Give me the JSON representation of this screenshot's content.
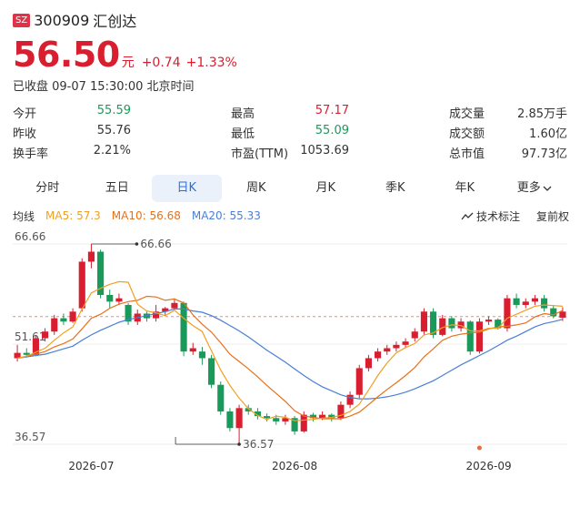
{
  "header": {
    "badge": "SZ",
    "code": "300909",
    "name": "汇创达"
  },
  "quote": {
    "price": "56.50",
    "unit": "元",
    "change": "+0.74",
    "change_pct": "+1.33%"
  },
  "status": "已收盘 09-07 15:30:00 北京时间",
  "stats": [
    [
      {
        "label": "今开",
        "value": "55.59",
        "color": "green"
      },
      {
        "label": "最高",
        "value": "57.17",
        "color": "red"
      },
      {
        "label": "成交量",
        "value": "2.85万手",
        "color": "normal"
      }
    ],
    [
      {
        "label": "昨收",
        "value": "55.76",
        "color": "normal"
      },
      {
        "label": "最低",
        "value": "55.09",
        "color": "green"
      },
      {
        "label": "成交额",
        "value": "1.60亿",
        "color": "normal"
      }
    ],
    [
      {
        "label": "换手率",
        "value": "2.21%",
        "color": "normal"
      },
      {
        "label": "市盈(TTM)",
        "value": "1053.69",
        "color": "normal"
      },
      {
        "label": "总市值",
        "value": "97.73亿",
        "color": "normal"
      }
    ]
  ],
  "tabs": [
    "分时",
    "五日",
    "日K",
    "周K",
    "月K",
    "季K",
    "年K",
    "更多"
  ],
  "active_tab": 2,
  "ma_bar": {
    "label": "均线",
    "ma5": "MA5: 57.3",
    "ma10": "MA10: 56.68",
    "ma20": "MA20: 55.33",
    "tech_label": "技术标注",
    "adj_label": "复前权"
  },
  "colors": {
    "up": "#d81e2f",
    "down": "#1a9a5a",
    "ma5": "#f0a020",
    "ma10": "#e8701a",
    "ma20": "#4a7fd6",
    "accent": "#2b6fd6"
  },
  "chart_data": {
    "type": "candlestick",
    "y_ticks": [
      "66.66",
      "51.61",
      "36.57"
    ],
    "y_tick_values": [
      66.66,
      51.61,
      36.57
    ],
    "x_labels": [
      "2026-07",
      "2026-08",
      "2026-09"
    ],
    "x_label_index": [
      8,
      30,
      51
    ],
    "high_marker": {
      "label": "66.66",
      "index": 8,
      "value": 66.66
    },
    "low_marker": {
      "label": "36.57",
      "index": 24,
      "value": 36.57
    },
    "prev_close": 55.76,
    "candles": [
      [
        49.5,
        50.3,
        51.5,
        49.0
      ],
      [
        50.3,
        50.0,
        51.0,
        49.6
      ],
      [
        50.0,
        52.5,
        53.0,
        49.8
      ],
      [
        52.5,
        53.5,
        54.0,
        52.0
      ],
      [
        53.5,
        55.5,
        56.0,
        53.0
      ],
      [
        55.5,
        55.0,
        56.2,
        54.5
      ],
      [
        55.0,
        56.5,
        57.0,
        54.8
      ],
      [
        57.0,
        64.0,
        64.5,
        56.5
      ],
      [
        64.0,
        65.5,
        66.66,
        63.0
      ],
      [
        65.5,
        59.0,
        65.8,
        58.5
      ],
      [
        59.0,
        58.0,
        59.8,
        57.0
      ],
      [
        58.0,
        58.5,
        59.2,
        57.5
      ],
      [
        57.5,
        55.0,
        57.8,
        54.5
      ],
      [
        55.0,
        56.2,
        56.8,
        54.5
      ],
      [
        56.2,
        55.5,
        56.5,
        55.0
      ],
      [
        55.5,
        56.5,
        57.5,
        55.0
      ],
      [
        56.5,
        57.0,
        57.2,
        56.0
      ],
      [
        57.0,
        57.8,
        58.5,
        56.8
      ],
      [
        57.8,
        50.5,
        58.0,
        49.8
      ],
      [
        50.5,
        51.0,
        51.8,
        50.0
      ],
      [
        50.5,
        49.5,
        51.2,
        48.5
      ],
      [
        49.5,
        45.5,
        50.0,
        45.0
      ],
      [
        45.5,
        41.5,
        46.0,
        41.0
      ],
      [
        41.5,
        39.0,
        42.0,
        38.5
      ],
      [
        39.0,
        42.0,
        42.5,
        36.57
      ],
      [
        42.0,
        41.5,
        42.5,
        41.0
      ],
      [
        41.5,
        40.8,
        42.0,
        40.3
      ],
      [
        40.8,
        40.5,
        41.2,
        40.0
      ],
      [
        40.5,
        40.0,
        41.0,
        39.5
      ],
      [
        40.0,
        40.5,
        41.0,
        39.5
      ],
      [
        40.5,
        38.5,
        40.8,
        38.0
      ],
      [
        38.5,
        41.0,
        41.5,
        38.3
      ],
      [
        41.0,
        40.5,
        41.3,
        40.0
      ],
      [
        40.5,
        41.0,
        41.5,
        40.2
      ],
      [
        41.0,
        40.5,
        41.2,
        40.0
      ],
      [
        40.5,
        42.5,
        43.0,
        40.2
      ],
      [
        42.5,
        44.0,
        44.5,
        42.0
      ],
      [
        44.0,
        48.0,
        48.5,
        43.5
      ],
      [
        48.0,
        49.5,
        50.0,
        47.5
      ],
      [
        49.5,
        50.5,
        51.0,
        49.0
      ],
      [
        50.5,
        51.0,
        51.5,
        50.0
      ],
      [
        51.0,
        51.5,
        52.0,
        50.5
      ],
      [
        51.5,
        52.0,
        52.5,
        51.0
      ],
      [
        52.5,
        53.5,
        54.0,
        52.0
      ],
      [
        53.5,
        56.5,
        57.0,
        53.0
      ],
      [
        56.5,
        53.0,
        57.0,
        52.5
      ],
      [
        53.0,
        55.5,
        56.0,
        52.8
      ],
      [
        55.5,
        54.0,
        55.8,
        53.5
      ],
      [
        54.0,
        55.0,
        55.5,
        53.5
      ],
      [
        55.0,
        50.5,
        55.2,
        50.0
      ],
      [
        50.5,
        55.0,
        55.5,
        50.2
      ],
      [
        55.0,
        55.3,
        55.8,
        54.5
      ],
      [
        55.3,
        54.0,
        55.5,
        53.8
      ],
      [
        54.0,
        58.5,
        59.0,
        53.5
      ],
      [
        58.5,
        57.5,
        59.2,
        57.0
      ],
      [
        57.5,
        58.0,
        58.5,
        57.0
      ],
      [
        58.0,
        58.5,
        59.0,
        57.5
      ],
      [
        58.5,
        57.0,
        59.0,
        56.5
      ],
      [
        57.0,
        55.8,
        57.5,
        55.5
      ],
      [
        55.59,
        56.5,
        57.17,
        55.09
      ]
    ],
    "ma5": [
      49.5,
      49.8,
      50.4,
      51.0,
      52.2,
      53.3,
      54.2,
      56.9,
      59.3,
      60.0,
      60.6,
      61.0,
      60.9,
      57.6,
      56.6,
      56.3,
      55.9,
      56.7,
      55.5,
      54.4,
      53.5,
      50.6,
      47.7,
      45.4,
      43.5,
      41.9,
      40.9,
      40.3,
      40.8,
      40.6,
      40.1,
      40.2,
      40.3,
      40.5,
      40.6,
      40.9,
      41.5,
      42.6,
      44.7,
      46.9,
      48.8,
      50.3,
      51.1,
      51.7,
      53.0,
      53.3,
      54.1,
      54.5,
      54.4,
      53.6,
      53.6,
      54.0,
      54.0,
      55.5,
      56.1,
      56.7,
      57.3,
      57.5,
      57.4,
      57.3
    ],
    "ma10": [
      49.5,
      49.8,
      50.1,
      50.5,
      51.2,
      51.7,
      52.4,
      53.9,
      55.5,
      56.1,
      57.0,
      57.6,
      58.0,
      58.2,
      58.8,
      58.7,
      58.2,
      58.4,
      57.8,
      56.0,
      54.6,
      53.4,
      51.8,
      50.1,
      49.0,
      47.9,
      46.7,
      45.4,
      44.2,
      43.0,
      41.6,
      40.8,
      40.6,
      40.4,
      40.4,
      40.4,
      40.8,
      41.4,
      42.5,
      43.7,
      44.8,
      45.8,
      46.9,
      48.1,
      49.7,
      50.9,
      52.2,
      52.8,
      53.1,
      53.3,
      53.4,
      53.9,
      54.2,
      54.3,
      54.5,
      54.8,
      55.7,
      56.2,
      56.0,
      56.68
    ],
    "ma20": [
      49.5,
      49.7,
      49.9,
      50.1,
      50.5,
      50.9,
      51.3,
      52.2,
      53.0,
      53.7,
      54.3,
      54.9,
      55.3,
      55.6,
      55.9,
      56.2,
      56.5,
      56.9,
      56.9,
      56.6,
      56.4,
      55.9,
      55.2,
      54.4,
      53.6,
      52.7,
      51.7,
      50.7,
      49.8,
      48.9,
      47.9,
      46.9,
      46.0,
      45.2,
      44.6,
      44.0,
      43.6,
      43.4,
      43.4,
      43.5,
      43.7,
      44.0,
      44.4,
      44.9,
      45.5,
      46.1,
      46.9,
      47.7,
      48.5,
      49.2,
      49.9,
      50.6,
      51.4,
      52.2,
      52.8,
      53.5,
      54.2,
      54.7,
      55.0,
      55.33
    ]
  }
}
